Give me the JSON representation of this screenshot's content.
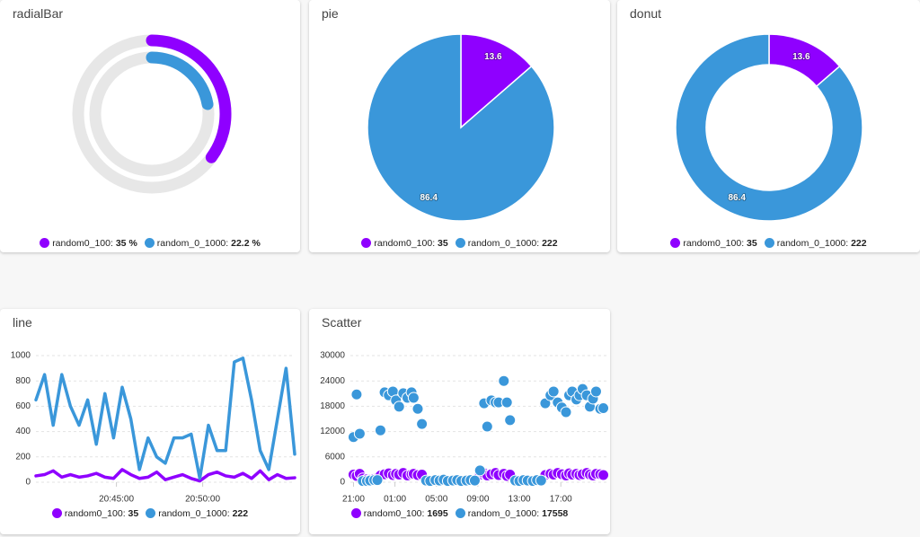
{
  "chart_data": [
    {
      "type": "radialBar",
      "title": "radialBar",
      "ylim": [
        0,
        100
      ],
      "series": [
        {
          "name": "random0_100",
          "color": "#8f00ff",
          "value": 35,
          "value_label": "35 %"
        },
        {
          "name": "random_0_1000",
          "color": "#3a97da",
          "value": 22.2,
          "value_label": "22.2 %"
        }
      ]
    },
    {
      "type": "pie",
      "title": "pie",
      "series": [
        {
          "name": "random0_100",
          "color": "#8f00ff",
          "value": 35,
          "percent": 13.6
        },
        {
          "name": "random_0_1000",
          "color": "#3a97da",
          "value": 222,
          "percent": 86.4
        }
      ]
    },
    {
      "type": "donut",
      "title": "donut",
      "series": [
        {
          "name": "random0_100",
          "color": "#8f00ff",
          "value": 35,
          "percent": 13.6
        },
        {
          "name": "random_0_1000",
          "color": "#3a97da",
          "value": 222,
          "percent": 86.4
        }
      ]
    },
    {
      "type": "line",
      "title": "line",
      "x": [
        "20:40:20",
        "20:40:50",
        "20:41:20",
        "20:41:50",
        "20:42:20",
        "20:42:50",
        "20:43:20",
        "20:43:50",
        "20:44:20",
        "20:44:50",
        "20:45:20",
        "20:45:50",
        "20:46:20",
        "20:46:50",
        "20:47:20",
        "20:47:50",
        "20:48:20",
        "20:48:50",
        "20:49:20",
        "20:49:50",
        "20:50:20",
        "20:50:50",
        "20:51:20",
        "20:51:50",
        "20:52:20",
        "20:52:50",
        "20:53:20",
        "20:53:50",
        "20:54:20",
        "20:54:50",
        "20:55:20"
      ],
      "xlim": [
        "20:40:20",
        "20:55:20"
      ],
      "xticks": [
        "20:45:00",
        "20:50:00"
      ],
      "ylim": [
        0,
        1000
      ],
      "yticks": [
        0,
        200,
        400,
        600,
        800,
        1000
      ],
      "grid": true,
      "series": [
        {
          "name": "random0_100",
          "color": "#8f00ff",
          "legend_value": 35,
          "values": [
            50,
            60,
            90,
            40,
            60,
            40,
            50,
            70,
            40,
            30,
            100,
            60,
            30,
            40,
            80,
            20,
            40,
            60,
            30,
            10,
            60,
            80,
            50,
            40,
            70,
            30,
            90,
            20,
            60,
            30,
            35
          ]
        },
        {
          "name": "random_0_1000",
          "color": "#3a97da",
          "legend_value": 222,
          "values": [
            650,
            850,
            450,
            850,
            600,
            450,
            650,
            300,
            700,
            350,
            750,
            500,
            100,
            350,
            200,
            150,
            350,
            350,
            380,
            30,
            450,
            250,
            250,
            950,
            980,
            650,
            250,
            100,
            500,
            900,
            222
          ]
        }
      ]
    },
    {
      "type": "scatter",
      "title": "Scatter",
      "xlim": [
        20.7,
        45.4
      ],
      "xticks": [
        {
          "value": 21,
          "label": "21:00"
        },
        {
          "value": 25,
          "label": "01:00"
        },
        {
          "value": 29,
          "label": "05:00"
        },
        {
          "value": 33,
          "label": "09:00"
        },
        {
          "value": 37,
          "label": "13:00"
        },
        {
          "value": 41,
          "label": "17:00"
        }
      ],
      "ylim": [
        0,
        30000
      ],
      "yticks": [
        0,
        6000,
        12000,
        18000,
        24000,
        30000
      ],
      "grid": true,
      "series": [
        {
          "name": "random0_100",
          "color": "#8f00ff",
          "legend_value": 1695,
          "x": [
            21.0,
            21.3,
            21.6,
            21.9,
            22.3,
            22.6,
            23.0,
            23.3,
            23.6,
            24.0,
            24.4,
            24.8,
            25.1,
            25.4,
            25.8,
            26.2,
            26.6,
            26.8,
            27.2,
            27.6,
            33.2,
            33.6,
            33.9,
            34.3,
            34.7,
            35.0,
            35.5,
            35.8,
            36.1,
            39.5,
            40.0,
            40.3,
            40.7,
            41.1,
            41.5,
            41.8,
            42.1,
            42.5,
            42.8,
            43.1,
            43.5,
            43.8,
            44.1,
            44.4,
            44.8,
            45.1
          ],
          "values": [
            1800,
            1500,
            2000,
            900,
            700,
            600,
            800,
            1000,
            1600,
            1900,
            2100,
            1700,
            2000,
            1800,
            2200,
            1600,
            1900,
            2000,
            1700,
            1800,
            1800,
            2100,
            1600,
            1900,
            2200,
            1700,
            2000,
            1500,
            1800,
            1700,
            2000,
            1800,
            2200,
            1900,
            1600,
            2100,
            1800,
            2000,
            1700,
            1900,
            2200,
            1800,
            1600,
            2000,
            1900,
            1695
          ]
        },
        {
          "name": "random_0_1000",
          "color": "#3a97da",
          "legend_value": 17558,
          "x": [
            21.0,
            21.3,
            21.6,
            21.9,
            22.3,
            22.6,
            23.0,
            23.3,
            23.6,
            24.0,
            24.4,
            24.8,
            25.1,
            25.4,
            25.8,
            26.2,
            26.6,
            26.8,
            27.2,
            27.6,
            28.0,
            28.4,
            28.9,
            29.3,
            29.7,
            30.1,
            30.6,
            31.0,
            31.4,
            31.9,
            32.3,
            32.7,
            33.2,
            33.6,
            33.9,
            34.3,
            34.7,
            35.0,
            35.5,
            35.8,
            36.1,
            36.6,
            37.0,
            37.4,
            37.8,
            38.3,
            38.7,
            39.1,
            39.5,
            40.0,
            40.3,
            40.7,
            41.1,
            41.5,
            41.8,
            42.1,
            42.5,
            42.8,
            43.1,
            43.5,
            43.8,
            44.1,
            44.4,
            44.8,
            45.1
          ],
          "values": [
            10700,
            20800,
            11500,
            300,
            300,
            400,
            500,
            500,
            12300,
            21300,
            20600,
            21500,
            19400,
            17900,
            21100,
            20000,
            21300,
            20000,
            17400,
            13800,
            400,
            300,
            500,
            400,
            600,
            300,
            400,
            500,
            300,
            400,
            500,
            400,
            2800,
            18700,
            13200,
            19400,
            18900,
            18900,
            24000,
            18900,
            14700,
            400,
            300,
            500,
            400,
            300,
            500,
            400,
            18700,
            20600,
            21500,
            18900,
            17700,
            16600,
            20600,
            21500,
            19600,
            20600,
            22100,
            20600,
            17900,
            19800,
            21500,
            17400,
            17558
          ]
        }
      ]
    }
  ]
}
